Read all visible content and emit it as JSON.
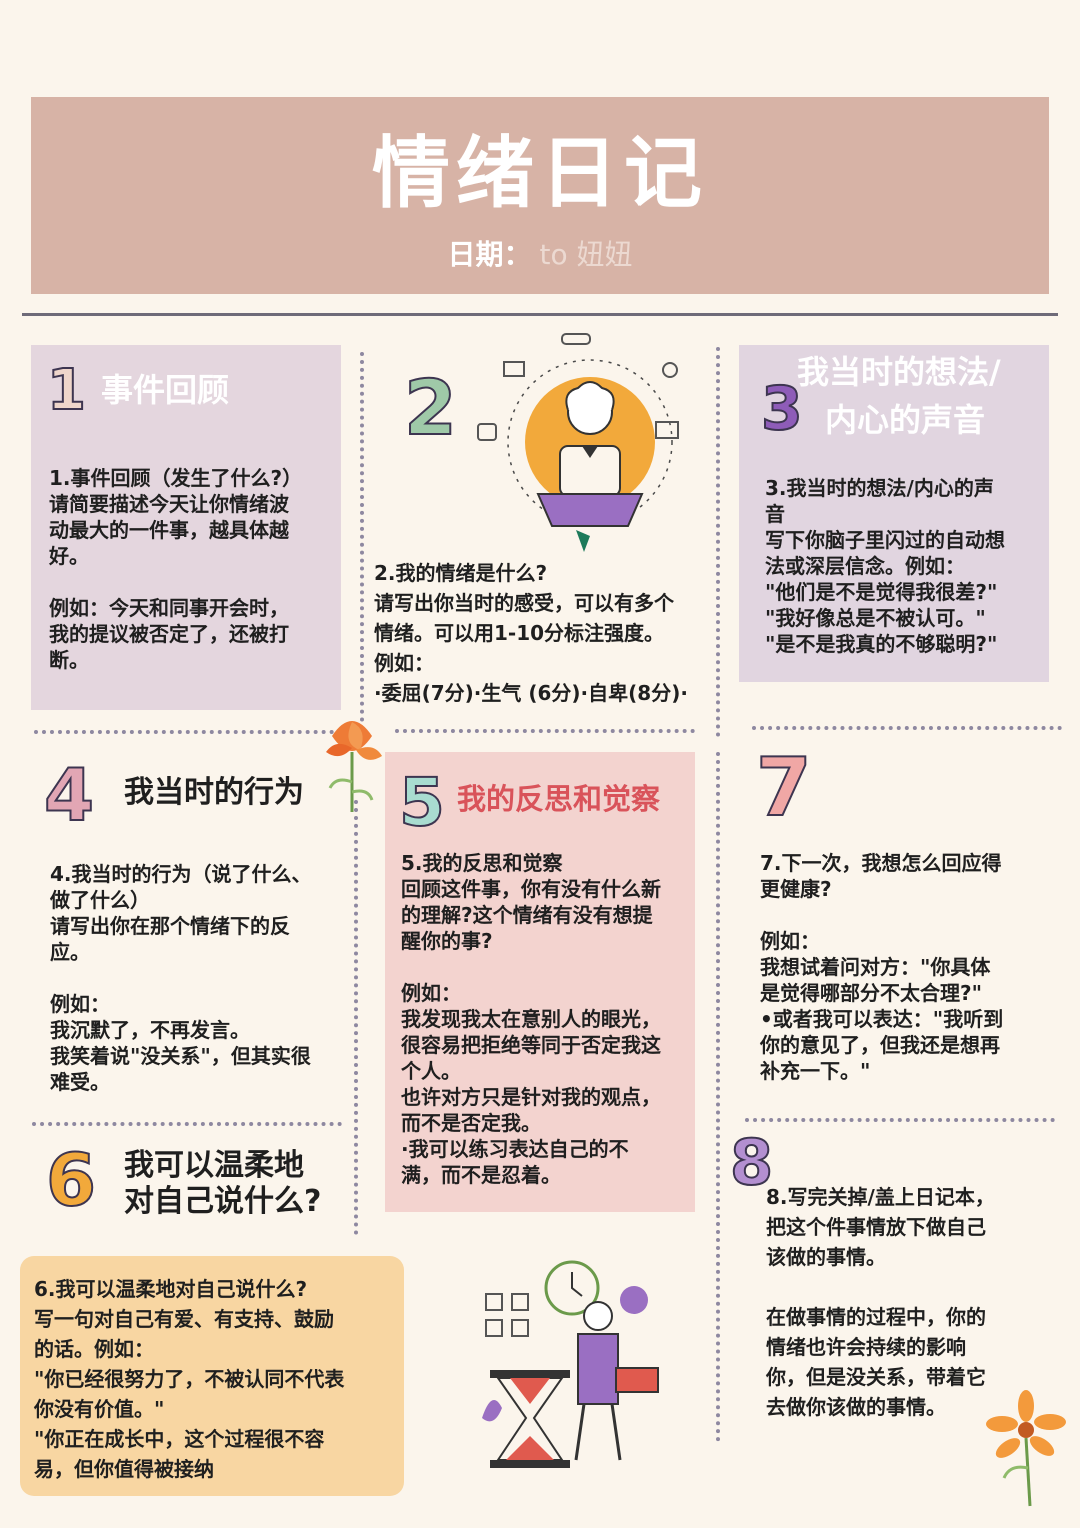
{
  "header": {
    "title": "情绪日记",
    "date_label": "日期：",
    "date_value": "to 妞妞"
  },
  "sections": {
    "s1": {
      "number": "1",
      "heading": "事件回顾",
      "body": "1.事件回顾（发生了什么?）\n请简要描述今天让你情绪波\n动最大的一件事，越具体越\n好。\n\n例如：今天和同事开会时，\n我的提议被否定了，还被打\n断。"
    },
    "s2": {
      "number": "2",
      "body": "2.我的情绪是什么?\n请写出你当时的感受，可以有多个\n情绪。可以用1-10分标注强度。\n例如：\n·委屈(7分)·生气 (6分)·自卑(8分)·"
    },
    "s3": {
      "number": "3",
      "heading_line1": "我当时的想法/",
      "heading_line2": "内心的声音",
      "body": "3.我当时的想法/内心的声\n音\n写下你脑子里闪过的自动想\n法或深层信念。例如：\n\"他们是不是觉得我很差?\"\n\"我好像总是不被认可。\"\n\"是不是我真的不够聪明?\""
    },
    "s4": {
      "number": "4",
      "heading": "我当时的行为",
      "body": "4.我当时的行为（说了什么、\n做了什么）\n请写出你在那个情绪下的反\n应。\n\n例如：\n我沉默了，不再发言。\n我笑着说\"没关系\"，但其实很\n难受。"
    },
    "s5": {
      "number": "5",
      "heading": "我的反思和觉察",
      "body": "5.我的反思和觉察\n回顾这件事，你有没有什么新\n的理解?这个情绪有没有想提\n醒你的事?\n\n例如：\n我发现我太在意别人的眼光，\n很容易把拒绝等同于否定我这\n个人。\n也许对方只是针对我的观点，\n而不是否定我。\n·我可以练习表达自己的不\n满，而不是忍着。"
    },
    "s6": {
      "number": "6",
      "heading_line1": "我可以温柔地",
      "heading_line2": "对自己说什么?",
      "body": "6.我可以温柔地对自己说什么?\n写一句对自己有爱、有支持、鼓励\n的话。例如：\n\"你已经很努力了，不被认同不代表\n你没有价值。\"\n\"你正在成长中，这个过程很不容\n易，但你值得被接纳"
    },
    "s7": {
      "number": "7",
      "body": "7.下一次，我想怎么回应得\n更健康?\n\n例如：\n我想试着问对方：\"你具体\n是觉得哪部分不太合理?\"\n•或者我可以表达：\"我听到\n你的意见了，但我还是想再\n补充一下。\""
    },
    "s8": {
      "number": "8",
      "body": "8.写完关掉/盖上日记本，\n把这个件事情放下做自己\n该做的事情。\n\n在做事情的过程中，你的\n情绪也许会持续的影响\n你，但是没关系，带着它\n去做你该做的事情。"
    }
  },
  "colors": {
    "background": "#fbf5ec",
    "header": "#d7b3a6",
    "panel_lavender": "#e4d6de",
    "panel_pink": "#f3d3cf",
    "panel_peach": "#f8d6a2",
    "heading_rose": "#d9535a",
    "heading_white": "#ffffff"
  },
  "icons": [
    "person-laptop-illustration",
    "flower-icon",
    "hourglass-clock-illustration",
    "calendar-icon"
  ]
}
